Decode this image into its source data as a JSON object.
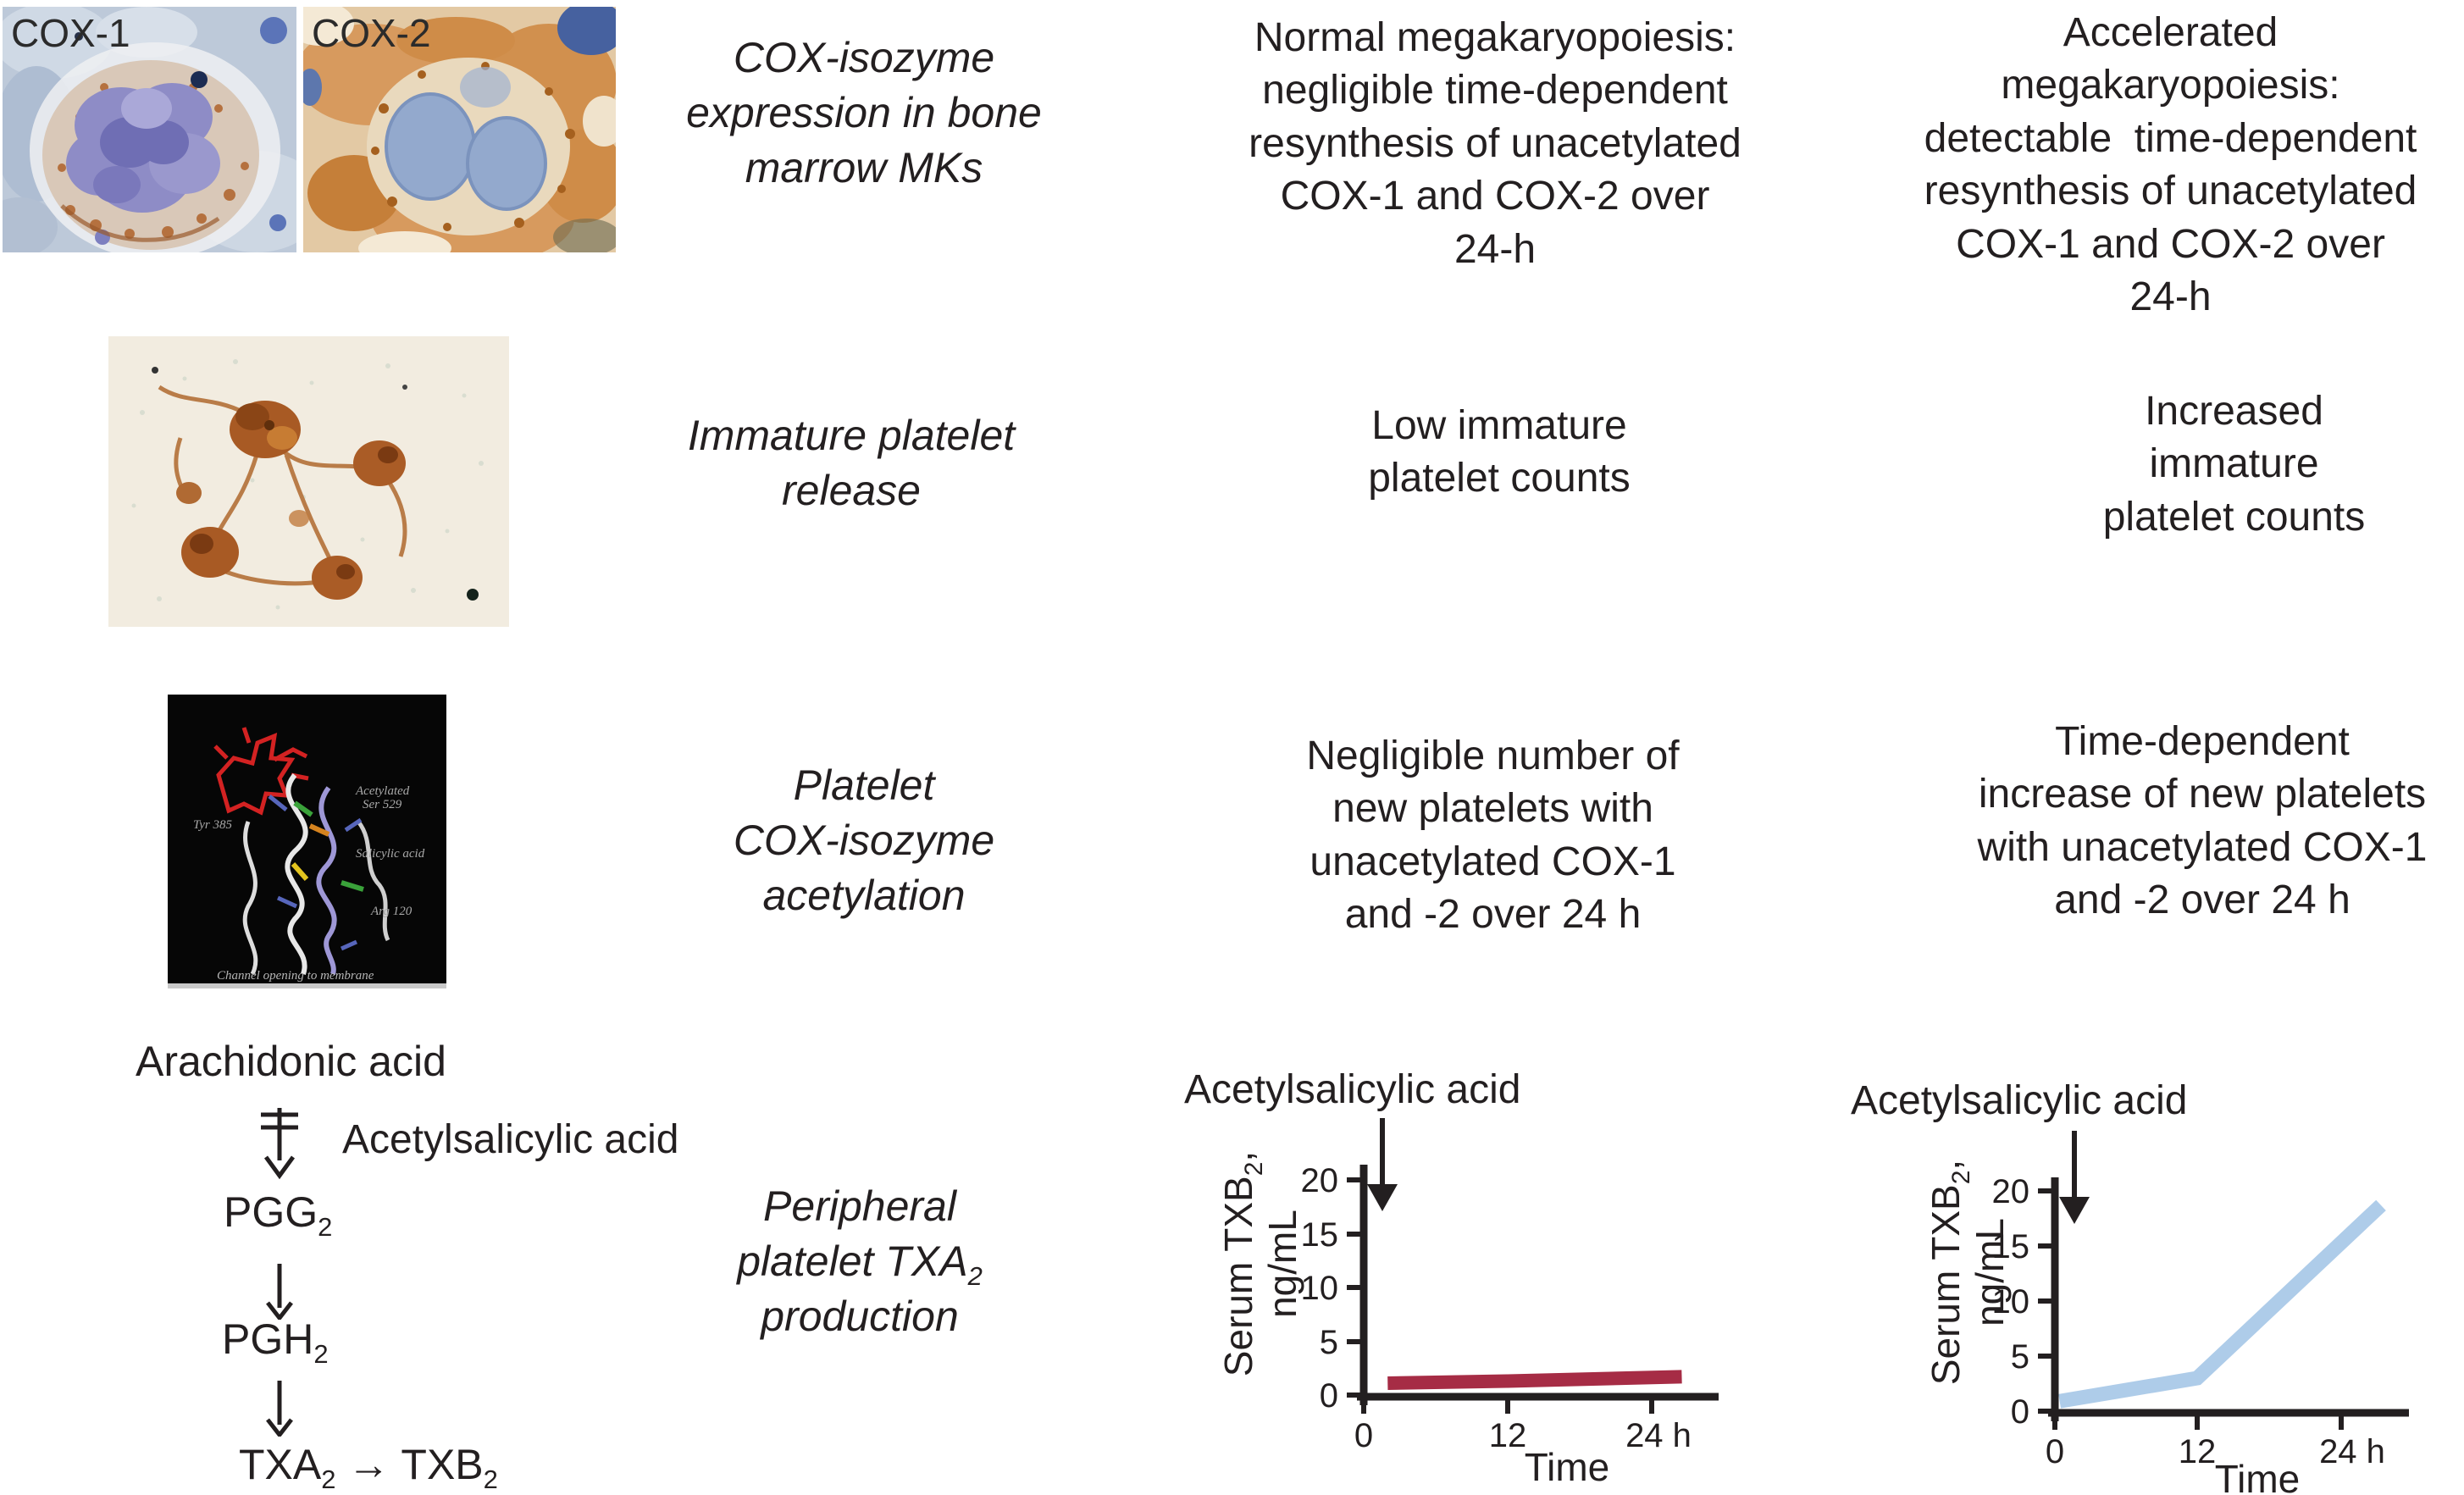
{
  "figure": {
    "row1": {
      "cox1_label": "COX-1",
      "cox2_label": "COX-2",
      "label": "COX-isozyme\nexpression in bone\nmarrow MKs",
      "normal": "Normal megakaryopoiesis:\nnegligible time-dependent\nresynthesis of unacetylated\nCOX-1 and COX-2 over\n24-h",
      "accelerated": "Accelerated\nmegakaryopoiesis:\ndetectable  time-dependent\nresynthesis of unacetylated\nCOX-1 and COX-2 over\n24-h"
    },
    "row2": {
      "label": "Immature platelet\nrelease",
      "normal": "Low immature\nplatelet counts",
      "accelerated": "Increased\nimmature\nplatelet counts"
    },
    "row3": {
      "label": "Platelet\nCOX-isozyme\nacetylation",
      "normal": "Negligible number of\nnew platelets with\nunacetylated COX-1\nand -2 over 24 h",
      "accelerated": "Time-dependent\nincrease of new platelets\nwith unacetylated COX-1\nand -2 over 24 h",
      "molecule": {
        "tyr": "Tyr 385",
        "ser_line1": "Acetylated",
        "ser_line2": "Ser 529",
        "salicylic": "Salicylic acid",
        "arg": "Arg 120",
        "caption": "Channel opening to membrane"
      }
    },
    "row4": {
      "label_line1": "Peripheral",
      "label_line2_base": "platelet TXA",
      "label_line2_sub": "2",
      "label_line3": "production",
      "pathway": {
        "arachidonic": "Arachidonic acid",
        "aspirin": "Acetylsalicylic acid",
        "pgg_base": "PGG",
        "pgg_sub": "2",
        "pgh_base": "PGH",
        "pgh_sub": "2",
        "txa_base": "TXA",
        "txa_sub": "2",
        "to_arrow": "→",
        "txb_base": "TXB",
        "txb_sub": "2"
      }
    }
  },
  "chart_data": [
    {
      "type": "line",
      "title": "Acetylsalicylic acid",
      "ylabel_base": "Serum TXB",
      "ylabel_sub": "2",
      "ylabel_comma": ",",
      "ylabel_units": "ng/mL",
      "xlabel": "Time",
      "ylim": [
        0,
        21
      ],
      "xlim": [
        0,
        30
      ],
      "yticks": [
        0,
        5,
        10,
        15,
        20
      ],
      "xtick_values": [
        0,
        12,
        24
      ],
      "xtick_labels": [
        "0",
        "12",
        "24 h"
      ],
      "grid": false,
      "legend": "none",
      "series": [
        {
          "name": "serum TXB2, normal megakaryopoiesis",
          "color": "#a62c45",
          "width": 16,
          "x": [
            2,
            12,
            26.5
          ],
          "y": [
            1.1,
            1.3,
            1.7
          ]
        }
      ]
    },
    {
      "type": "line",
      "title": "Acetylsalicylic acid",
      "ylabel_base": "Serum TXB",
      "ylabel_sub": "2",
      "ylabel_comma": ",",
      "ylabel_units": "ng/mL",
      "xlabel": "Time",
      "ylim": [
        0,
        21
      ],
      "xlim": [
        0,
        30
      ],
      "yticks": [
        0,
        5,
        10,
        15,
        20
      ],
      "xtick_values": [
        0,
        12,
        24
      ],
      "xtick_labels": [
        "0",
        "12",
        "24 h"
      ],
      "grid": false,
      "legend": "none",
      "series": [
        {
          "name": "serum TXB2, accelerated megakaryopoiesis",
          "color": "#aecce9",
          "width": 17,
          "x": [
            0.4,
            12,
            27.5
          ],
          "y": [
            0.9,
            3.0,
            18.7
          ]
        }
      ]
    }
  ],
  "colors": {
    "maroon": "#a62c45",
    "light_blue": "#aecce9",
    "text": "#231f20"
  }
}
